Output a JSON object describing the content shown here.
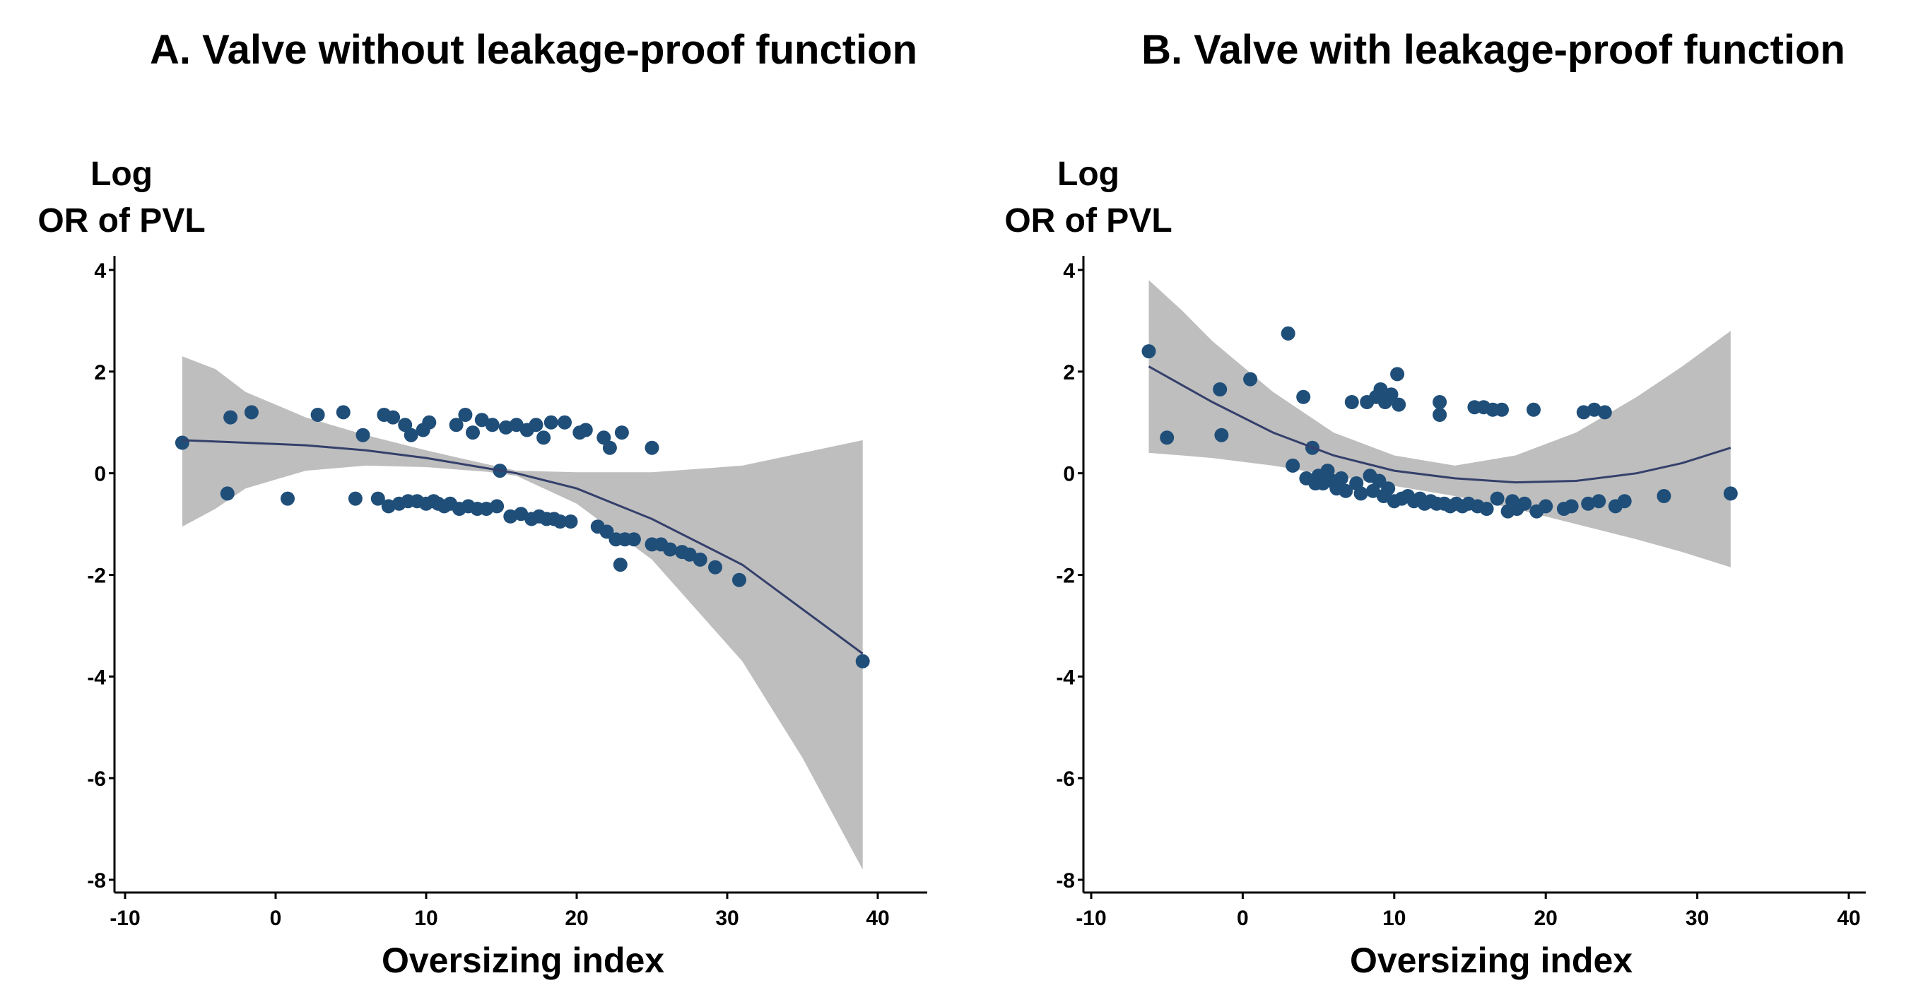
{
  "panel_titles": [
    "A. Valve without leakage-proof function",
    "B. Valve with leakage-proof function"
  ],
  "ylabel_line1": "Log",
  "ylabel_line2": "OR of PVL",
  "xlabel": "Oversizing index",
  "colors": {
    "point": "#1f4e79",
    "line": "#34406b",
    "band": "#bebebe",
    "axis": "#000000"
  },
  "chart_data": [
    {
      "type": "scatter",
      "title": "A. Valve without leakage-proof function",
      "xlabel": "Oversizing index",
      "ylabel": "Log OR of PVL",
      "xlim": [
        -10,
        40
      ],
      "ylim": [
        -8,
        4
      ],
      "xticks": [
        -10,
        0,
        10,
        20,
        30,
        40
      ],
      "yticks": [
        4,
        2,
        0,
        -2,
        -4,
        -6,
        -8
      ],
      "grid": false,
      "points": [
        {
          "x": -6.2,
          "y": 0.6
        },
        {
          "x": -3.2,
          "y": -0.4
        },
        {
          "x": -3.0,
          "y": 1.1
        },
        {
          "x": -1.6,
          "y": 1.2
        },
        {
          "x": 0.8,
          "y": -0.5
        },
        {
          "x": 2.8,
          "y": 1.15
        },
        {
          "x": 4.5,
          "y": 1.2
        },
        {
          "x": 5.3,
          "y": -0.5
        },
        {
          "x": 5.8,
          "y": 0.75
        },
        {
          "x": 6.8,
          "y": -0.5
        },
        {
          "x": 7.2,
          "y": 1.15
        },
        {
          "x": 7.5,
          "y": -0.65
        },
        {
          "x": 7.8,
          "y": 1.1
        },
        {
          "x": 8.2,
          "y": -0.6
        },
        {
          "x": 8.6,
          "y": 0.95
        },
        {
          "x": 8.8,
          "y": -0.55
        },
        {
          "x": 9.0,
          "y": 0.75
        },
        {
          "x": 9.4,
          "y": -0.55
        },
        {
          "x": 9.8,
          "y": 0.85
        },
        {
          "x": 10.0,
          "y": -0.6
        },
        {
          "x": 10.2,
          "y": 1.0
        },
        {
          "x": 10.5,
          "y": -0.55
        },
        {
          "x": 10.8,
          "y": -0.6
        },
        {
          "x": 11.2,
          "y": -0.65
        },
        {
          "x": 11.6,
          "y": -0.6
        },
        {
          "x": 12.0,
          "y": 0.95
        },
        {
          "x": 12.2,
          "y": -0.7
        },
        {
          "x": 12.6,
          "y": 1.15
        },
        {
          "x": 12.8,
          "y": -0.65
        },
        {
          "x": 13.1,
          "y": 0.8
        },
        {
          "x": 13.4,
          "y": -0.7
        },
        {
          "x": 13.7,
          "y": 1.05
        },
        {
          "x": 14.0,
          "y": -0.7
        },
        {
          "x": 14.4,
          "y": 0.95
        },
        {
          "x": 14.7,
          "y": -0.65
        },
        {
          "x": 14.9,
          "y": 0.05
        },
        {
          "x": 15.3,
          "y": 0.9
        },
        {
          "x": 15.6,
          "y": -0.85
        },
        {
          "x": 16.0,
          "y": 0.95
        },
        {
          "x": 16.3,
          "y": -0.8
        },
        {
          "x": 16.7,
          "y": 0.85
        },
        {
          "x": 17.0,
          "y": -0.9
        },
        {
          "x": 17.3,
          "y": 0.95
        },
        {
          "x": 17.5,
          "y": -0.85
        },
        {
          "x": 17.8,
          "y": 0.7
        },
        {
          "x": 18.0,
          "y": -0.9
        },
        {
          "x": 18.3,
          "y": 1.0
        },
        {
          "x": 18.5,
          "y": -0.9
        },
        {
          "x": 18.9,
          "y": -0.95
        },
        {
          "x": 19.2,
          "y": 1.0
        },
        {
          "x": 19.6,
          "y": -0.95
        },
        {
          "x": 20.2,
          "y": 0.8
        },
        {
          "x": 20.6,
          "y": 0.85
        },
        {
          "x": 21.4,
          "y": -1.05
        },
        {
          "x": 21.8,
          "y": 0.7
        },
        {
          "x": 22.0,
          "y": -1.15
        },
        {
          "x": 22.2,
          "y": 0.5
        },
        {
          "x": 22.6,
          "y": -1.3
        },
        {
          "x": 22.9,
          "y": -1.8
        },
        {
          "x": 23.2,
          "y": -1.3
        },
        {
          "x": 23.0,
          "y": 0.8
        },
        {
          "x": 23.8,
          "y": -1.3
        },
        {
          "x": 25.0,
          "y": 0.5
        },
        {
          "x": 25.0,
          "y": -1.4
        },
        {
          "x": 25.6,
          "y": -1.4
        },
        {
          "x": 26.2,
          "y": -1.5
        },
        {
          "x": 27.0,
          "y": -1.55
        },
        {
          "x": 27.5,
          "y": -1.6
        },
        {
          "x": 28.2,
          "y": -1.7
        },
        {
          "x": 29.2,
          "y": -1.85
        },
        {
          "x": 30.8,
          "y": -2.1
        },
        {
          "x": 39.0,
          "y": -3.7
        }
      ],
      "fit": [
        {
          "x": -6.2,
          "y": 0.65
        },
        {
          "x": -2,
          "y": 0.6
        },
        {
          "x": 2,
          "y": 0.55
        },
        {
          "x": 6,
          "y": 0.45
        },
        {
          "x": 10,
          "y": 0.3
        },
        {
          "x": 14,
          "y": 0.1
        },
        {
          "x": 16,
          "y": 0.0
        },
        {
          "x": 20,
          "y": -0.3
        },
        {
          "x": 25,
          "y": -0.9
        },
        {
          "x": 31,
          "y": -1.8
        },
        {
          "x": 39,
          "y": -3.55
        }
      ],
      "ci_upper": [
        {
          "x": -6.2,
          "y": 2.3
        },
        {
          "x": -4,
          "y": 2.05
        },
        {
          "x": -2,
          "y": 1.6
        },
        {
          "x": 2,
          "y": 1.1
        },
        {
          "x": 6,
          "y": 0.75
        },
        {
          "x": 10,
          "y": 0.45
        },
        {
          "x": 14,
          "y": 0.18
        },
        {
          "x": 16,
          "y": 0.05
        },
        {
          "x": 20,
          "y": 0.02
        },
        {
          "x": 25,
          "y": 0.02
        },
        {
          "x": 31,
          "y": 0.15
        },
        {
          "x": 35,
          "y": 0.4
        },
        {
          "x": 39,
          "y": 0.65
        }
      ],
      "ci_lower": [
        {
          "x": -6.2,
          "y": -1.05
        },
        {
          "x": -4,
          "y": -0.7
        },
        {
          "x": -2,
          "y": -0.3
        },
        {
          "x": 2,
          "y": 0.05
        },
        {
          "x": 6,
          "y": 0.15
        },
        {
          "x": 10,
          "y": 0.12
        },
        {
          "x": 14,
          "y": 0.03
        },
        {
          "x": 16,
          "y": -0.05
        },
        {
          "x": 20,
          "y": -0.6
        },
        {
          "x": 25,
          "y": -1.7
        },
        {
          "x": 31,
          "y": -3.7
        },
        {
          "x": 35,
          "y": -5.6
        },
        {
          "x": 39,
          "y": -7.8
        }
      ]
    },
    {
      "type": "scatter",
      "title": "B. Valve with leakage-proof function",
      "xlabel": "Oversizing index",
      "ylabel": "Log OR of PVL",
      "xlim": [
        -10,
        40
      ],
      "ylim": [
        -8,
        4
      ],
      "xticks": [
        -10,
        0,
        10,
        20,
        30,
        40
      ],
      "yticks": [
        4,
        2,
        0,
        -2,
        -4,
        -6,
        -8
      ],
      "grid": false,
      "points": [
        {
          "x": -6.2,
          "y": 2.4
        },
        {
          "x": -5.0,
          "y": 0.7
        },
        {
          "x": -1.5,
          "y": 1.65
        },
        {
          "x": -1.4,
          "y": 0.75
        },
        {
          "x": 0.5,
          "y": 1.85
        },
        {
          "x": 3.0,
          "y": 2.75
        },
        {
          "x": 3.3,
          "y": 0.15
        },
        {
          "x": 4.0,
          "y": 1.5
        },
        {
          "x": 4.2,
          "y": -0.1
        },
        {
          "x": 4.6,
          "y": 0.5
        },
        {
          "x": 4.8,
          "y": -0.2
        },
        {
          "x": 5.0,
          "y": -0.05
        },
        {
          "x": 5.3,
          "y": -0.2
        },
        {
          "x": 5.6,
          "y": 0.05
        },
        {
          "x": 5.9,
          "y": -0.15
        },
        {
          "x": 6.2,
          "y": -0.3
        },
        {
          "x": 6.5,
          "y": -0.1
        },
        {
          "x": 6.8,
          "y": -0.35
        },
        {
          "x": 7.2,
          "y": 1.4
        },
        {
          "x": 7.5,
          "y": -0.2
        },
        {
          "x": 7.8,
          "y": -0.4
        },
        {
          "x": 8.2,
          "y": 1.4
        },
        {
          "x": 8.4,
          "y": -0.05
        },
        {
          "x": 8.6,
          "y": -0.35
        },
        {
          "x": 8.8,
          "y": 1.5
        },
        {
          "x": 9.0,
          "y": -0.15
        },
        {
          "x": 9.1,
          "y": 1.65
        },
        {
          "x": 9.3,
          "y": -0.45
        },
        {
          "x": 9.4,
          "y": 1.4
        },
        {
          "x": 9.6,
          "y": -0.3
        },
        {
          "x": 9.8,
          "y": 1.55
        },
        {
          "x": 10.0,
          "y": -0.55
        },
        {
          "x": 10.2,
          "y": 1.95
        },
        {
          "x": 10.3,
          "y": 1.35
        },
        {
          "x": 10.5,
          "y": -0.5
        },
        {
          "x": 10.9,
          "y": -0.45
        },
        {
          "x": 11.3,
          "y": -0.55
        },
        {
          "x": 11.7,
          "y": -0.5
        },
        {
          "x": 12.0,
          "y": -0.6
        },
        {
          "x": 12.4,
          "y": -0.55
        },
        {
          "x": 12.8,
          "y": -0.6
        },
        {
          "x": 13.0,
          "y": 1.4
        },
        {
          "x": 13.0,
          "y": 1.15
        },
        {
          "x": 13.3,
          "y": -0.6
        },
        {
          "x": 13.7,
          "y": -0.65
        },
        {
          "x": 14.1,
          "y": -0.6
        },
        {
          "x": 14.5,
          "y": -0.65
        },
        {
          "x": 14.9,
          "y": -0.6
        },
        {
          "x": 15.3,
          "y": 1.3
        },
        {
          "x": 15.5,
          "y": -0.65
        },
        {
          "x": 15.9,
          "y": 1.3
        },
        {
          "x": 16.1,
          "y": -0.7
        },
        {
          "x": 16.5,
          "y": 1.25
        },
        {
          "x": 16.8,
          "y": -0.5
        },
        {
          "x": 17.1,
          "y": 1.25
        },
        {
          "x": 17.5,
          "y": -0.75
        },
        {
          "x": 17.8,
          "y": -0.55
        },
        {
          "x": 18.1,
          "y": -0.7
        },
        {
          "x": 18.6,
          "y": -0.6
        },
        {
          "x": 19.2,
          "y": 1.25
        },
        {
          "x": 19.4,
          "y": -0.75
        },
        {
          "x": 20.0,
          "y": -0.65
        },
        {
          "x": 21.2,
          "y": -0.7
        },
        {
          "x": 21.7,
          "y": -0.65
        },
        {
          "x": 22.5,
          "y": 1.2
        },
        {
          "x": 22.8,
          "y": -0.6
        },
        {
          "x": 23.2,
          "y": 1.25
        },
        {
          "x": 23.5,
          "y": -0.55
        },
        {
          "x": 23.9,
          "y": 1.2
        },
        {
          "x": 24.6,
          "y": -0.65
        },
        {
          "x": 25.2,
          "y": -0.55
        },
        {
          "x": 27.8,
          "y": -0.45
        },
        {
          "x": 32.2,
          "y": -0.4
        }
      ],
      "fit": [
        {
          "x": -6.2,
          "y": 2.1
        },
        {
          "x": -2,
          "y": 1.4
        },
        {
          "x": 2,
          "y": 0.8
        },
        {
          "x": 6,
          "y": 0.35
        },
        {
          "x": 10,
          "y": 0.05
        },
        {
          "x": 14,
          "y": -0.1
        },
        {
          "x": 18,
          "y": -0.18
        },
        {
          "x": 22,
          "y": -0.15
        },
        {
          "x": 26,
          "y": 0.0
        },
        {
          "x": 29,
          "y": 0.2
        },
        {
          "x": 32.2,
          "y": 0.5
        }
      ],
      "ci_upper": [
        {
          "x": -6.2,
          "y": 3.8
        },
        {
          "x": -4,
          "y": 3.2
        },
        {
          "x": -2,
          "y": 2.6
        },
        {
          "x": 2,
          "y": 1.6
        },
        {
          "x": 6,
          "y": 0.8
        },
        {
          "x": 10,
          "y": 0.35
        },
        {
          "x": 14,
          "y": 0.15
        },
        {
          "x": 18,
          "y": 0.35
        },
        {
          "x": 22,
          "y": 0.8
        },
        {
          "x": 26,
          "y": 1.5
        },
        {
          "x": 29,
          "y": 2.1
        },
        {
          "x": 32.2,
          "y": 2.8
        }
      ],
      "ci_lower": [
        {
          "x": -6.2,
          "y": 0.4
        },
        {
          "x": -4,
          "y": 0.35
        },
        {
          "x": -2,
          "y": 0.3
        },
        {
          "x": 2,
          "y": 0.15
        },
        {
          "x": 6,
          "y": -0.05
        },
        {
          "x": 10,
          "y": -0.25
        },
        {
          "x": 14,
          "y": -0.45
        },
        {
          "x": 18,
          "y": -0.7
        },
        {
          "x": 22,
          "y": -1.0
        },
        {
          "x": 26,
          "y": -1.3
        },
        {
          "x": 29,
          "y": -1.55
        },
        {
          "x": 32.2,
          "y": -1.85
        }
      ]
    }
  ]
}
